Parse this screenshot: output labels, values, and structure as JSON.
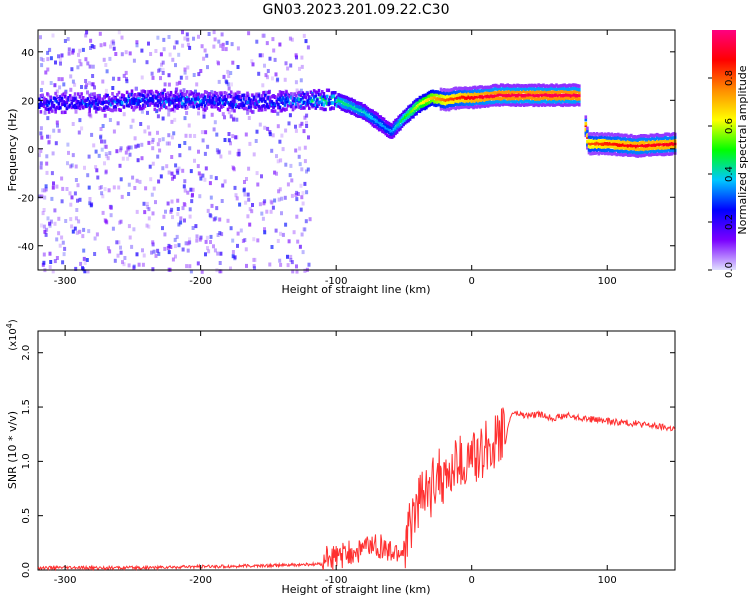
{
  "figure": {
    "title": "GN03.2023.201.09.22.C30"
  },
  "chart_data": [
    {
      "type": "heatmap",
      "xlabel": "Height of straight line (km)",
      "ylabel": "Frequency (Hz)",
      "xlim": [
        -320,
        150
      ],
      "ylim": [
        -50,
        49
      ],
      "xticks": [
        -300,
        -200,
        -100,
        0,
        100
      ],
      "yticks": [
        -40,
        -20,
        0,
        20,
        40
      ],
      "colorbar": {
        "label": "Normalized spectral amplitude",
        "range": [
          0.0,
          1.0
        ],
        "ticks": [
          "0.0",
          "0.2",
          "0.4",
          "0.6",
          "0.8"
        ],
        "colormap": [
          "#e0e0ff",
          "#7a00ff",
          "#0000ff",
          "#00c8ff",
          "#00ff00",
          "#ffff00",
          "#ff8c00",
          "#ff0000",
          "#ff0080"
        ]
      },
      "ridge": {
        "x": [
          -320,
          -280,
          -240,
          -200,
          -160,
          -120,
          -100,
          -80,
          -70,
          -60,
          -50,
          -40,
          -30,
          -20,
          -10,
          0,
          20,
          40,
          60,
          80,
          85,
          100,
          120,
          150
        ],
        "frequency": [
          19,
          19,
          20,
          20,
          19,
          20,
          20,
          15,
          11,
          7,
          13,
          18,
          21,
          20,
          21,
          21,
          22,
          22,
          22,
          22,
          2,
          2,
          1,
          2
        ],
        "amplitude": [
          0.25,
          0.25,
          0.3,
          0.3,
          0.25,
          0.35,
          0.45,
          0.4,
          0.35,
          0.35,
          0.5,
          0.6,
          0.7,
          0.8,
          0.85,
          0.9,
          0.95,
          0.95,
          0.95,
          0.95,
          0.8,
          0.85,
          0.9,
          0.9
        ]
      }
    },
    {
      "type": "line",
      "xlabel": "Height of straight line (km)",
      "ylabel": "SNR (10 * v/v)",
      "scale_label": "(x10",
      "scale_exp": "4",
      "scale_close": ")",
      "xlim": [
        -320,
        150
      ],
      "ylim": [
        0,
        2.2
      ],
      "xticks": [
        -300,
        -200,
        -100,
        0,
        100
      ],
      "yticks": [
        0.0,
        0.5,
        1.0,
        1.5,
        2.0
      ],
      "series": [
        {
          "color": "#ff3030",
          "x": [
            -320,
            -250,
            -200,
            -150,
            -120,
            -100,
            -90,
            -80,
            -70,
            -60,
            -50,
            -45,
            -40,
            -35,
            -30,
            -25,
            -20,
            -15,
            -10,
            -5,
            0,
            5,
            10,
            15,
            20,
            25,
            28,
            30,
            40,
            50,
            60,
            70,
            80,
            100,
            120,
            150
          ],
          "values": [
            0.02,
            0.02,
            0.03,
            0.04,
            0.05,
            0.06,
            0.1,
            0.15,
            0.18,
            0.1,
            0.12,
            0.35,
            0.55,
            0.6,
            0.65,
            0.85,
            0.75,
            0.8,
            0.95,
            0.85,
            1.0,
            0.9,
            1.1,
            1.05,
            1.15,
            1.2,
            1.38,
            1.45,
            1.42,
            1.43,
            1.4,
            1.42,
            1.4,
            1.37,
            1.35,
            1.3
          ]
        }
      ]
    }
  ]
}
